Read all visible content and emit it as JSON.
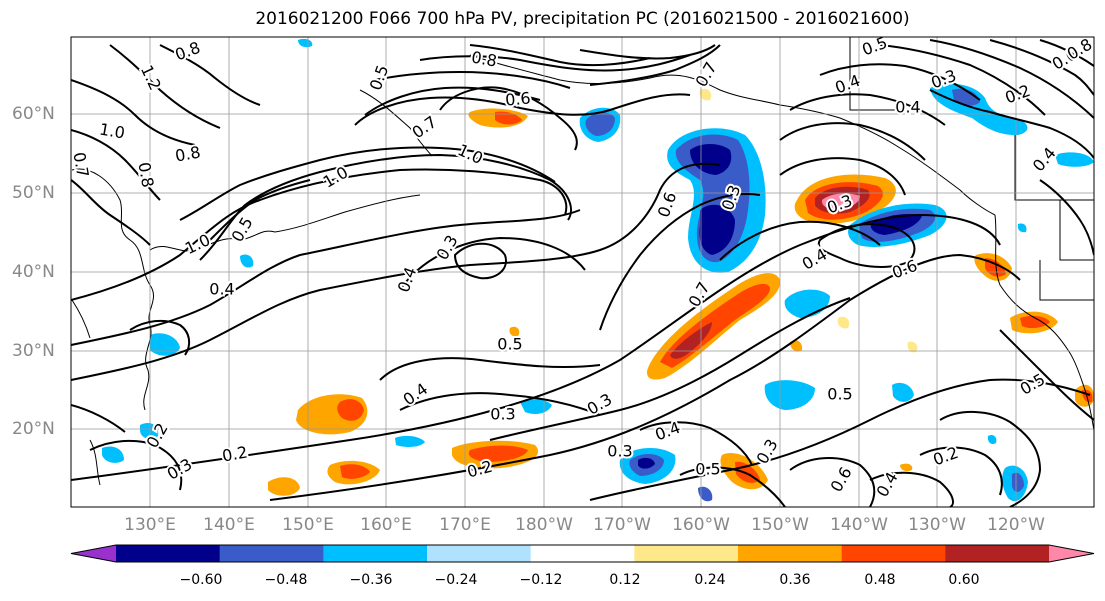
{
  "title": "2016021200 F066 700 hPa PV, precipitation PC (2016021500 - 2016021600)",
  "lat_labels": [
    "60°N",
    "50°N",
    "40°N",
    "30°N",
    "20°N"
  ],
  "lon_labels": [
    "130°E",
    "140°E",
    "150°E",
    "160°E",
    "170°E",
    "180°W",
    "170°W",
    "160°W",
    "150°W",
    "140°W",
    "130°W",
    "120°W"
  ],
  "colorbar": {
    "ticks": [
      "−0.60",
      "−0.48",
      "−0.36",
      "−0.24",
      "−0.12",
      "0.12",
      "0.24",
      "0.36",
      "0.48",
      "0.60"
    ],
    "colors": [
      "#9932cc",
      "#00008b",
      "#3a5cc9",
      "#00bfff",
      "#b0e2ff",
      "#ffffff",
      "#ffe88a",
      "#ffa500",
      "#ff4500",
      "#b22222",
      "#ff88aa"
    ]
  },
  "contour_labels": [
    "0.8",
    "1.2",
    "1.0",
    "0.8",
    "0.7",
    "0.8",
    "0.8",
    "0.6",
    "0.7",
    "1.0",
    "1.0",
    "1.0",
    "0.5",
    "0.4",
    "0.3",
    "0.4",
    "0.5",
    "0.4",
    "0.3",
    "0.3",
    "0.2",
    "0.2",
    "0.3",
    "0.2",
    "0.3",
    "0.4",
    "0.5",
    "0.3",
    "0.6",
    "0.4",
    "0.2",
    "0.5",
    "0.6",
    "0.5",
    "0.7",
    "0.6",
    "0.3",
    "0.4",
    "0.3",
    "0.4",
    "0.4",
    "0.5",
    "0.3",
    "0.2",
    "0.6",
    "0.4",
    "0.8",
    "0.7",
    "0.5"
  ],
  "colors": {
    "grid": "#999999",
    "axis_label": "#888888",
    "contour": "#000000"
  }
}
